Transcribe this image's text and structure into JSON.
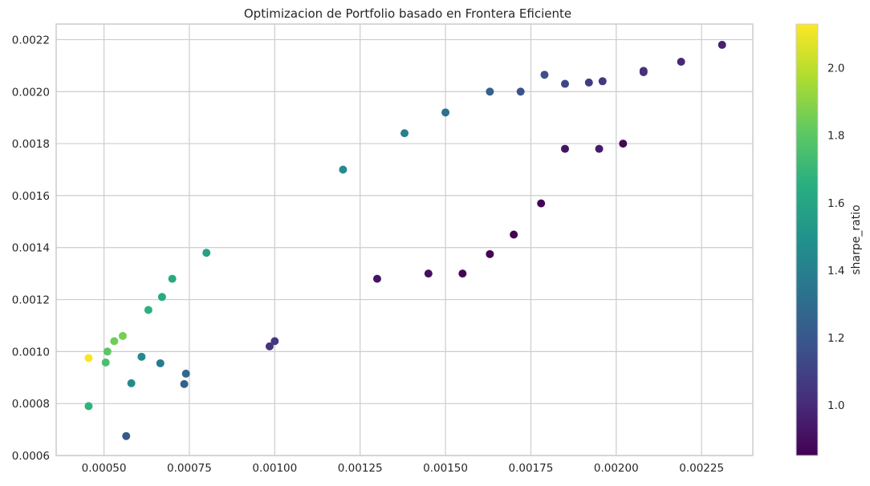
{
  "chart_data": {
    "type": "scatter",
    "title": "Optimizacion de Portfolio basado en Frontera Eficiente",
    "xlabel": "",
    "ylabel": "",
    "xlim": [
      0.00036,
      0.0024
    ],
    "ylim": [
      0.0006,
      0.00226
    ],
    "grid": true,
    "x_ticks": [
      0.0005,
      0.00075,
      0.001,
      0.00125,
      0.0015,
      0.00175,
      0.002,
      0.00225
    ],
    "x_tick_labels": [
      "0.00050",
      "0.00075",
      "0.00100",
      "0.00125",
      "0.00150",
      "0.00175",
      "0.00200",
      "0.00225"
    ],
    "y_ticks": [
      0.0006,
      0.0008,
      0.001,
      0.0012,
      0.0014,
      0.0016,
      0.0018,
      0.002,
      0.0022
    ],
    "y_tick_labels": [
      "0.0006",
      "0.0008",
      "0.0010",
      "0.0012",
      "0.0014",
      "0.0016",
      "0.0018",
      "0.0020",
      "0.0022"
    ],
    "colorbar": {
      "label": "sharpe_ratio",
      "colormap": "viridis",
      "range": [
        0.85,
        2.13
      ],
      "ticks": [
        1.0,
        1.2,
        1.4,
        1.6,
        1.8,
        2.0
      ],
      "tick_labels": [
        "1.0",
        "1.2",
        "1.4",
        "1.6",
        "1.8",
        "2.0"
      ]
    },
    "points": [
      {
        "x": 0.000455,
        "y": 0.000975,
        "c": 2.12
      },
      {
        "x": 0.000455,
        "y": 0.00079,
        "c": 1.68
      },
      {
        "x": 0.000565,
        "y": 0.000675,
        "c": 1.21
      },
      {
        "x": 0.00231,
        "y": 0.00218,
        "c": 0.97
      },
      {
        "x": 0.00219,
        "y": 0.002115,
        "c": 0.99
      },
      {
        "x": 0.00208,
        "y": 0.00208,
        "c": 1.03
      },
      {
        "x": 0.00208,
        "y": 0.002075,
        "c": 1.02
      },
      {
        "x": 0.00202,
        "y": 0.0018,
        "c": 0.87
      },
      {
        "x": 0.00179,
        "y": 0.002065,
        "c": 1.16
      },
      {
        "x": 0.00192,
        "y": 0.002035,
        "c": 1.08
      },
      {
        "x": 0.00196,
        "y": 0.00204,
        "c": 1.06
      },
      {
        "x": 0.00185,
        "y": 0.00203,
        "c": 1.12
      },
      {
        "x": 0.000555,
        "y": 0.00106,
        "c": 1.86
      },
      {
        "x": 0.00053,
        "y": 0.00104,
        "c": 1.84
      },
      {
        "x": 0.00051,
        "y": 0.001,
        "c": 1.8
      },
      {
        "x": 0.000505,
        "y": 0.000958,
        "c": 1.75
      },
      {
        "x": 0.00058,
        "y": 0.000878,
        "c": 1.46
      },
      {
        "x": 0.000735,
        "y": 0.000875,
        "c": 1.25
      },
      {
        "x": 0.00074,
        "y": 0.000915,
        "c": 1.28
      },
      {
        "x": 0.000665,
        "y": 0.000955,
        "c": 1.37
      },
      {
        "x": 0.00061,
        "y": 0.00098,
        "c": 1.45
      },
      {
        "x": 0.00063,
        "y": 0.00116,
        "c": 1.66
      },
      {
        "x": 0.00067,
        "y": 0.00121,
        "c": 1.63
      },
      {
        "x": 0.0007,
        "y": 0.00128,
        "c": 1.62
      },
      {
        "x": 0.0008,
        "y": 0.00138,
        "c": 1.58
      },
      {
        "x": 0.0012,
        "y": 0.0017,
        "c": 1.46
      },
      {
        "x": 0.00138,
        "y": 0.00184,
        "c": 1.4
      },
      {
        "x": 0.0015,
        "y": 0.00192,
        "c": 1.33
      },
      {
        "x": 0.00163,
        "y": 0.002,
        "c": 1.25
      },
      {
        "x": 0.00172,
        "y": 0.002,
        "c": 1.18
      },
      {
        "x": 0.00155,
        "y": 0.0013,
        "c": 0.86
      },
      {
        "x": 0.00163,
        "y": 0.001375,
        "c": 0.86
      },
      {
        "x": 0.0017,
        "y": 0.00145,
        "c": 0.85
      },
      {
        "x": 0.00178,
        "y": 0.00157,
        "c": 0.86
      },
      {
        "x": 0.00185,
        "y": 0.00178,
        "c": 0.92
      },
      {
        "x": 0.00195,
        "y": 0.00178,
        "c": 0.95
      },
      {
        "x": 0.001,
        "y": 0.00104,
        "c": 1.06
      },
      {
        "x": 0.000985,
        "y": 0.00102,
        "c": 1.03
      },
      {
        "x": 0.0013,
        "y": 0.00128,
        "c": 0.92
      },
      {
        "x": 0.00145,
        "y": 0.0013,
        "c": 0.9
      }
    ]
  }
}
